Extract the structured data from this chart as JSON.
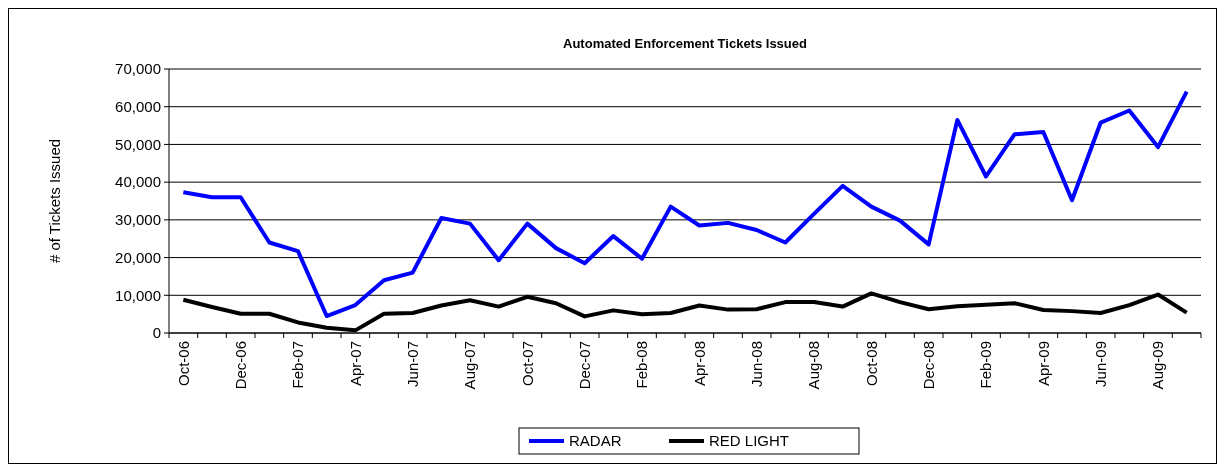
{
  "chart_data": {
    "type": "line",
    "title": "Automated Enforcement Tickets Issued",
    "ylabel": "# of Tickets Issued",
    "categories": [
      "Oct-06",
      null,
      "Dec-06",
      null,
      "Feb-07",
      null,
      "Apr-07",
      null,
      "Jun-07",
      null,
      "Aug-07",
      null,
      "Oct-07",
      null,
      "Dec-07",
      null,
      "Feb-08",
      null,
      "Apr-08",
      null,
      "Jun-08",
      null,
      "Aug-08",
      null,
      "Oct-08",
      null,
      "Dec-08",
      null,
      "Feb-09",
      null,
      "Apr-09",
      null,
      "Jun-09",
      null,
      "Aug-09",
      null
    ],
    "series": [
      {
        "name": "RADAR",
        "color": "#0000ff",
        "values": [
          37300,
          36000,
          36000,
          24000,
          21700,
          4500,
          7400,
          14000,
          16000,
          30500,
          29000,
          19300,
          29000,
          22500,
          18500,
          25700,
          19700,
          33500,
          28500,
          29200,
          27300,
          24000,
          31600,
          39000,
          33500,
          29800,
          23500,
          56500,
          41500,
          52700,
          53300,
          35200,
          55800,
          59000,
          49300,
          64000
        ]
      },
      {
        "name": "RED LIGHT",
        "color": "#000000",
        "values": [
          8800,
          6900,
          5100,
          5100,
          2800,
          1400,
          700,
          5100,
          5300,
          7300,
          8700,
          7000,
          9600,
          7900,
          4400,
          6000,
          5000,
          5300,
          7300,
          6200,
          6300,
          8200,
          8200,
          7000,
          10500,
          8200,
          6300,
          7100,
          7500,
          7900,
          6100,
          5800,
          5300,
          7400,
          10200,
          5400
        ]
      }
    ],
    "ylim": [
      0,
      70000
    ],
    "yticks": [
      {
        "value": 0,
        "label": "0"
      },
      {
        "value": 10000,
        "label": "10,000"
      },
      {
        "value": 20000,
        "label": "20,000"
      },
      {
        "value": 30000,
        "label": "30,000"
      },
      {
        "value": 40000,
        "label": "40,000"
      },
      {
        "value": 50000,
        "label": "50,000"
      },
      {
        "value": 60000,
        "label": "60,000"
      },
      {
        "value": 70000,
        "label": "70,000"
      }
    ],
    "grid": "y",
    "legend": "bottom",
    "marker": "none",
    "line_style": "solid"
  }
}
